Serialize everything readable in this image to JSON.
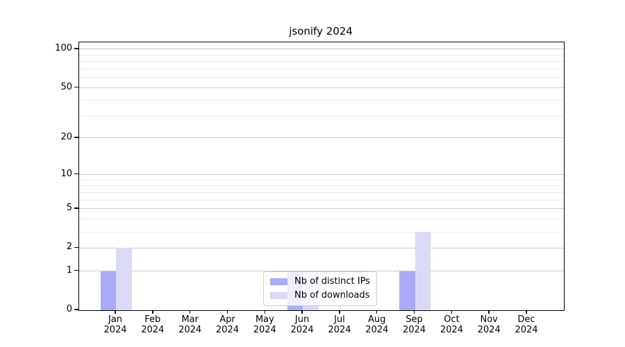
{
  "figure": {
    "background": "#ffffff"
  },
  "chart_data": {
    "type": "bar",
    "title": "jsonify 2024",
    "xlabel": "",
    "ylabel": "",
    "categories": [
      "Jan",
      "Feb",
      "Mar",
      "Apr",
      "May",
      "Jun",
      "Jul",
      "Aug",
      "Sep",
      "Oct",
      "Nov",
      "Dec"
    ],
    "category_year": "2024",
    "series": [
      {
        "name": "Nb of distinct IPs",
        "color": "#aaaaf7",
        "values": [
          1,
          0,
          0,
          0,
          0,
          1,
          0,
          0,
          1,
          0,
          0,
          0
        ]
      },
      {
        "name": "Nb of downloads",
        "color": "#dadaf8",
        "values": [
          2,
          0,
          0,
          0,
          0,
          1,
          0,
          0,
          3,
          0,
          0,
          0
        ]
      }
    ],
    "yscale": "log1p",
    "ylim": [
      0,
      113
    ],
    "yticks_major": [
      0,
      1,
      2,
      5,
      10,
      20,
      50,
      100
    ],
    "yticks_minor": [
      3,
      4,
      6,
      7,
      8,
      9,
      30,
      40,
      60,
      70,
      80,
      90
    ],
    "grid": "both",
    "legend_position": "inside-bottom-center",
    "colors": {
      "grid_major": "#cccccc",
      "grid_minor": "#ebebeb",
      "axis": "#000000",
      "text": "#000000"
    }
  }
}
